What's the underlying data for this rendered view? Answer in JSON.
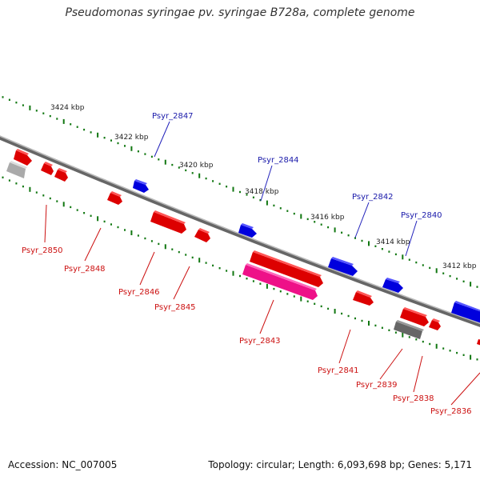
{
  "title": "Pseudomonas syringae pv. syringae B728a, complete genome",
  "footer": {
    "accession": "Accession: NC_007005",
    "summary": "Topology: circular; Length: 6,093,698 bp; Genes: 5,171"
  },
  "colors": {
    "forward_gene": "#0000ee",
    "reverse_gene": "#ee0000",
    "reverse_gene_alt": "#ee1188",
    "other_feature": "#999999",
    "backbone": "#888888",
    "tick": "#117711",
    "forward_label": "#1a1aaa",
    "reverse_label": "#cc1111"
  },
  "scale_labels": [
    "3424 kbp",
    "3422 kbp",
    "3420 kbp",
    "3418 kbp",
    "3416 kbp",
    "3414 kbp",
    "3412 kbp"
  ],
  "forward_genes": [
    {
      "label": "Psyr_2847"
    },
    {
      "label": "Psyr_2844"
    },
    {
      "label": "Psyr_2842"
    },
    {
      "label": "Psyr_2840"
    }
  ],
  "reverse_genes": [
    {
      "label": "Psyr_2850"
    },
    {
      "label": "Psyr_2848"
    },
    {
      "label": "Psyr_2846"
    },
    {
      "label": "Psyr_2845"
    },
    {
      "label": "Psyr_2843"
    },
    {
      "label": "Psyr_2841"
    },
    {
      "label": "Psyr_2839"
    },
    {
      "label": "Psyr_2838"
    },
    {
      "label": "Psyr_2836"
    }
  ]
}
